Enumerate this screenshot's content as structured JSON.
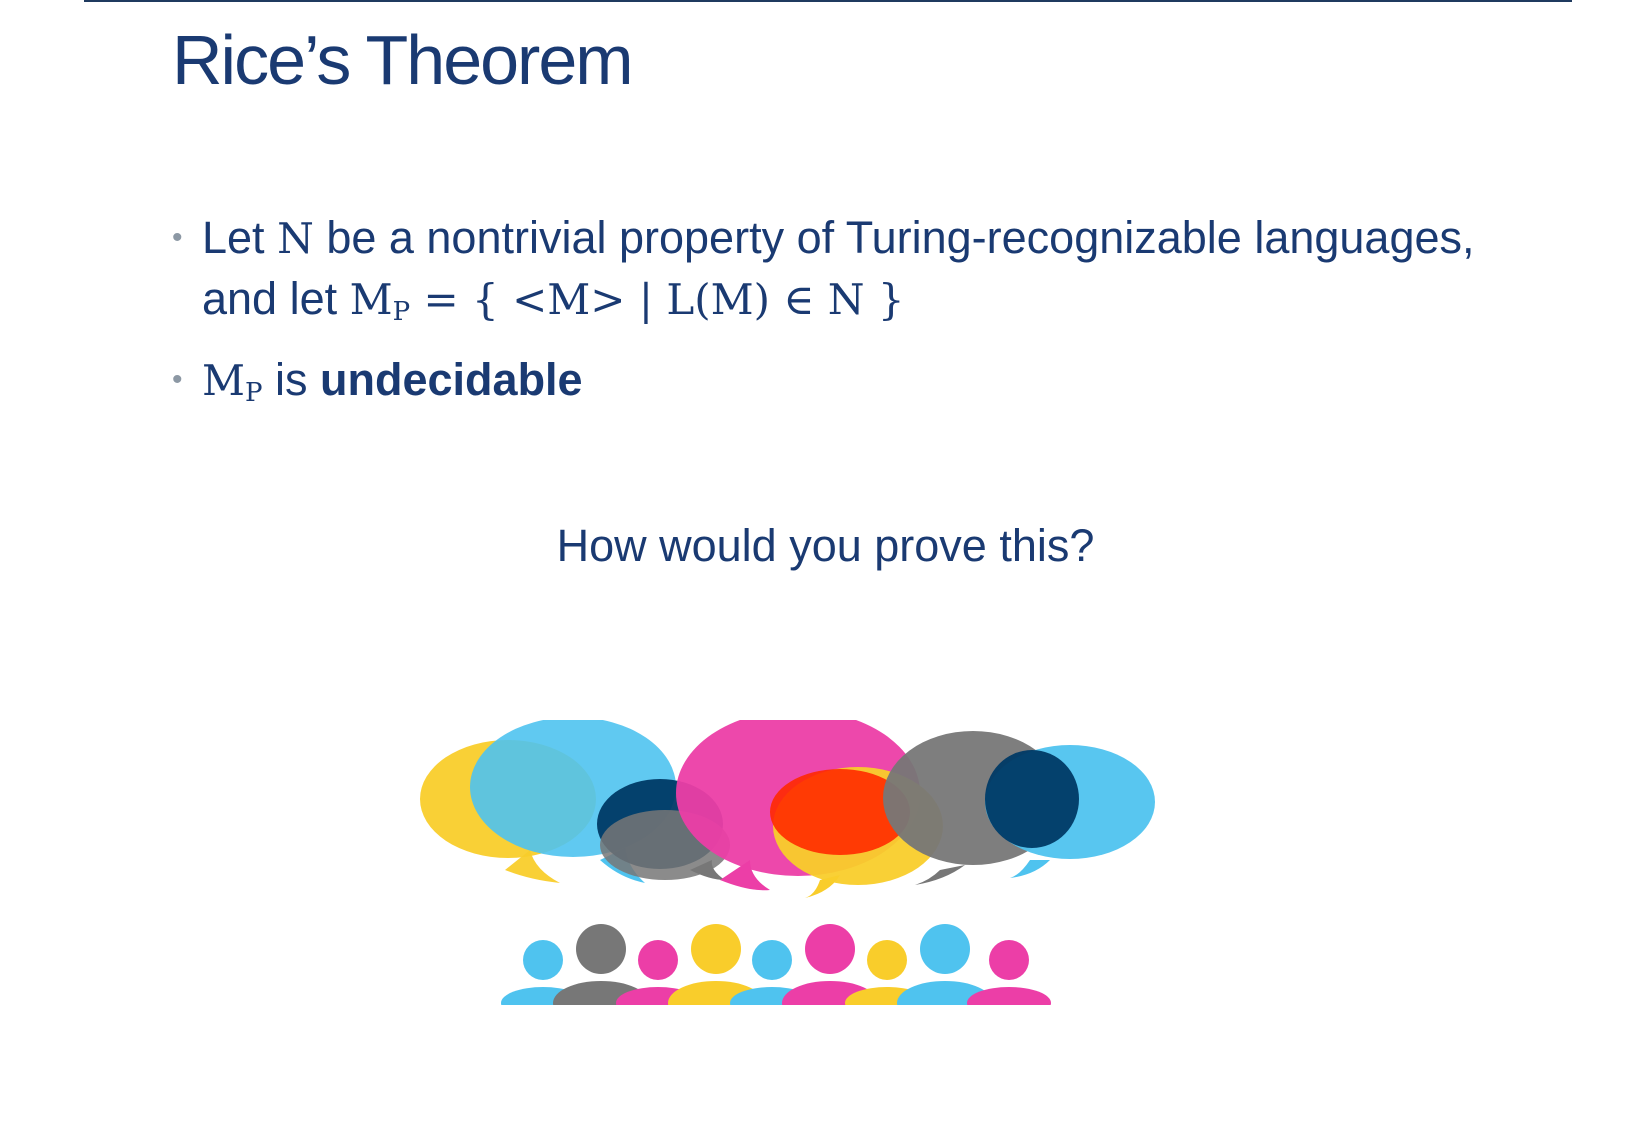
{
  "slide": {
    "title": "Rice’s Theorem",
    "bullet_1": {
      "text_a": "Let ",
      "math_n": "N",
      "text_b": " be a nontrivial property of Turing-recognizable languages, and let ",
      "math_m": "M",
      "math_sub": "P",
      "math_set": " = { <M> | L(M) ∈ N }"
    },
    "bullet_2": {
      "math_m": "M",
      "math_sub": "P",
      "text_a": " is ",
      "text_bold": "undecidable"
    },
    "question": "How would you prove this?"
  },
  "illustration": {
    "name": "speech-bubbles-and-people",
    "colors": {
      "yellow": "#f9cd2b",
      "cyan": "#4fc3ef",
      "pink": "#ec3ea7",
      "gray": "#777777",
      "navy": "#003a66",
      "red": "#ff2a00",
      "teal": "#4db79f",
      "dark_red": "#6e0a00",
      "orange": "#ef8a00"
    }
  }
}
